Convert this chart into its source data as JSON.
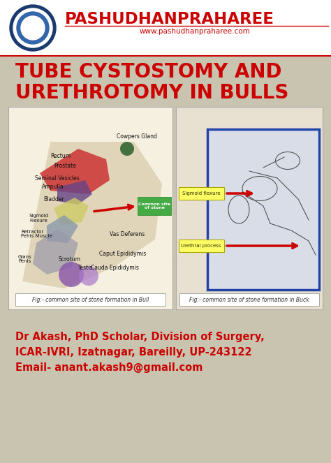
{
  "bg_color": "#c8c4b0",
  "header_bg": "#ffffff",
  "brand_name": "PASHUDHANPRAHAREE",
  "brand_color": "#cc0000",
  "website": "www.pashudhanpraharee.com",
  "website_color": "#cc0000",
  "title_line1": "TUBE CYSTOSTOMY AND",
  "title_line2": "URETHROTOMY IN BULLS",
  "title_color": "#cc0000",
  "title_fontsize": 20,
  "footer_line1": "Dr Akash, PhD Scholar, Division of Surgery,",
  "footer_line2": "ICAR-IVRI, Izatnagar, Bareilly, UP-243122",
  "footer_line3": "Email- anant.akash9@gmail.com",
  "footer_color": "#cc0000",
  "footer_fontsize": 10.5,
  "left_caption": "Fig:- common site of stone formation in Bull",
  "right_caption": "Fig:- common site of stone formation in Buck",
  "caption_fontsize": 5.5,
  "green_box_text": "Common site\nof stone",
  "sig_text": "Sigmoid flexure",
  "ure_text": "Urethral process"
}
